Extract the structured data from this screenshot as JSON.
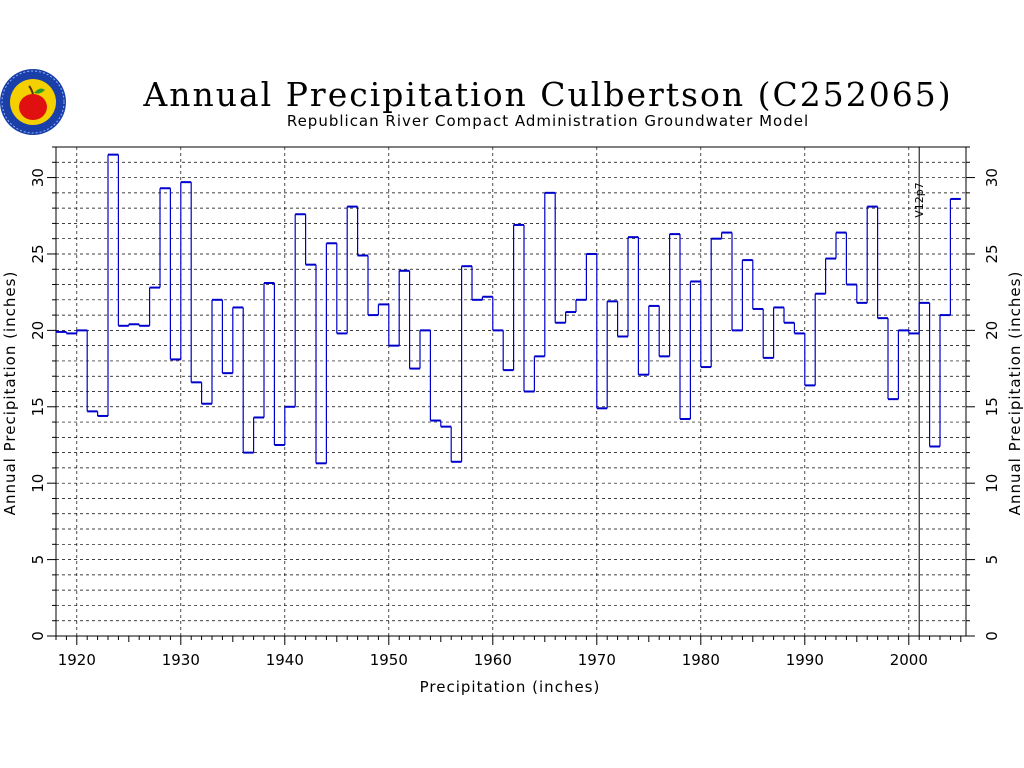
{
  "chart_data": {
    "type": "line",
    "step": true,
    "title": "Annual Precipitation Culbertson (C252065)",
    "subtitle": "Republican River Compact Administration Groundwater Model",
    "xlabel": "Precipitation (inches)",
    "ylabel_left": "Annual Precipitation (inches)",
    "ylabel_right": "Annual Precipitation (inches)",
    "annotation": "V12p7",
    "annotation_x": 2001,
    "xlim": [
      1918,
      2005.5
    ],
    "ylim": [
      0,
      32
    ],
    "x_ticks": [
      1920,
      1930,
      1940,
      1950,
      1960,
      1970,
      1980,
      1990,
      2000
    ],
    "x_tick_labels": [
      "1920",
      "1930",
      "1940",
      "1950",
      "1960",
      "1970",
      "1980",
      "1990",
      "2000"
    ],
    "y_ticks": [
      0,
      5,
      10,
      15,
      20,
      25,
      30
    ],
    "y_tick_labels": [
      "0",
      "5",
      "10",
      "15",
      "20",
      "25",
      "30"
    ],
    "grid": true,
    "line_color": "#0000cc",
    "x": [
      1918,
      1919,
      1920,
      1921,
      1922,
      1923,
      1924,
      1925,
      1926,
      1927,
      1928,
      1929,
      1930,
      1931,
      1932,
      1933,
      1934,
      1935,
      1936,
      1937,
      1938,
      1939,
      1940,
      1941,
      1942,
      1943,
      1944,
      1945,
      1946,
      1947,
      1948,
      1949,
      1950,
      1951,
      1952,
      1953,
      1954,
      1955,
      1956,
      1957,
      1958,
      1959,
      1960,
      1961,
      1962,
      1963,
      1964,
      1965,
      1966,
      1967,
      1968,
      1969,
      1970,
      1971,
      1972,
      1973,
      1974,
      1975,
      1976,
      1977,
      1978,
      1979,
      1980,
      1981,
      1982,
      1983,
      1984,
      1985,
      1986,
      1987,
      1988,
      1989,
      1990,
      1991,
      1992,
      1993,
      1994,
      1995,
      1996,
      1997,
      1998,
      1999,
      2000,
      2001,
      2002,
      2003,
      2004
    ],
    "values": [
      19.9,
      19.8,
      20.0,
      14.7,
      14.4,
      31.5,
      20.3,
      20.4,
      20.3,
      22.8,
      29.3,
      18.1,
      29.7,
      16.6,
      15.2,
      22.0,
      17.2,
      21.5,
      12.0,
      14.3,
      23.1,
      12.5,
      15.0,
      27.6,
      24.3,
      11.3,
      25.7,
      19.8,
      28.1,
      24.9,
      21.0,
      21.7,
      19.0,
      23.9,
      17.5,
      20.0,
      14.1,
      13.7,
      11.4,
      24.2,
      22.0,
      22.2,
      20.0,
      17.4,
      26.9,
      16.0,
      18.3,
      29.0,
      20.5,
      21.2,
      22.0,
      25.0,
      14.9,
      21.9,
      19.6,
      26.1,
      17.1,
      21.6,
      18.3,
      26.3,
      14.2,
      23.2,
      17.6,
      26.0,
      26.4,
      20.0,
      24.6,
      21.4,
      18.2,
      21.5,
      20.5,
      19.8,
      16.4,
      22.4,
      24.7,
      26.4,
      23.0,
      21.8,
      28.1,
      20.8,
      15.5,
      20.0,
      19.8,
      21.8,
      12.4,
      21.0,
      28.6
    ]
  }
}
